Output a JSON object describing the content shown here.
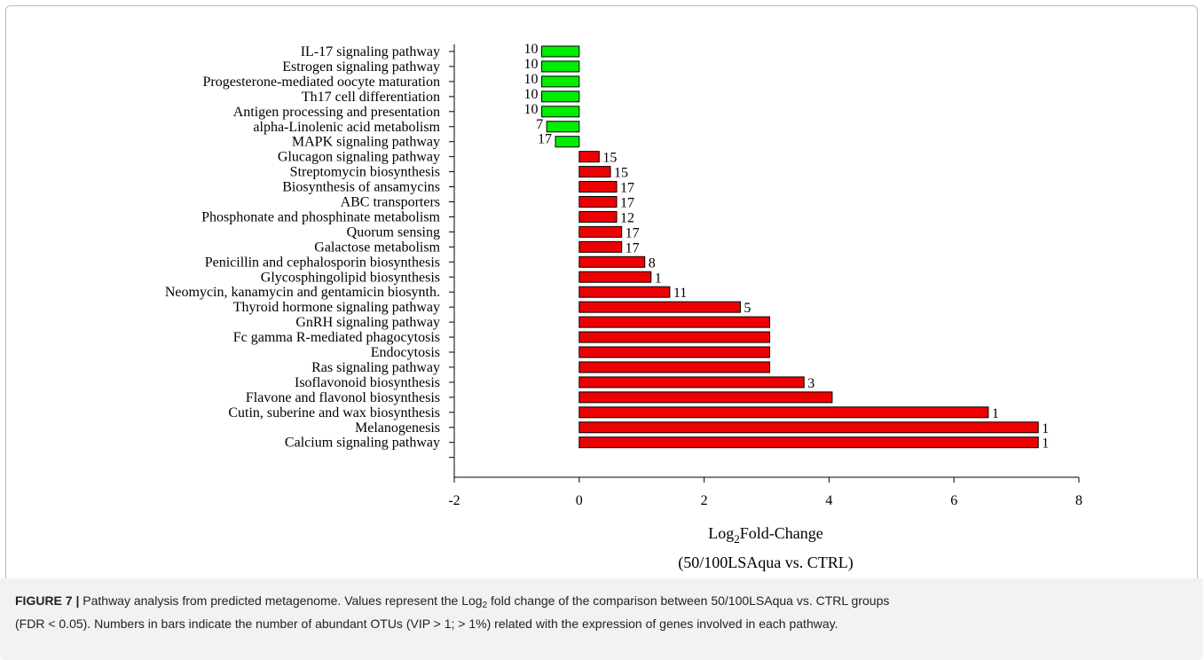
{
  "chart_data": {
    "type": "bar",
    "orientation": "horizontal",
    "categories": [
      "IL-17 signaling pathway",
      "Estrogen signaling pathway",
      "Progesterone-mediated oocyte maturation",
      "Th17 cell differentiation",
      "Antigen processing and presentation",
      "alpha-Linolenic acid metabolism",
      "MAPK signaling pathway",
      "Glucagon signaling pathway",
      "Streptomycin biosynthesis",
      "Biosynthesis of ansamycins",
      "ABC transporters",
      "Phosphonate and phosphinate metabolism",
      "Quorum sensing",
      "Galactose metabolism",
      "Penicillin and cephalosporin biosynthesis",
      "Glycosphingolipid biosynthesis",
      "Neomycin, kanamycin and gentamicin biosynth.",
      "Thyroid hormone signaling pathway",
      "GnRH signaling pathway",
      "Fc gamma R-mediated phagocytosis",
      "Endocytosis",
      "Ras signaling pathway",
      "Isoflavonoid biosynthesis",
      "Flavone and flavonol biosynthesis",
      "Cutin, suberine and wax biosynthesis",
      "Melanogenesis",
      "Calcium signaling pathway"
    ],
    "values": [
      -0.6,
      -0.6,
      -0.6,
      -0.6,
      -0.6,
      -0.52,
      -0.38,
      0.32,
      0.5,
      0.6,
      0.6,
      0.6,
      0.68,
      0.68,
      1.05,
      1.15,
      1.45,
      2.58,
      3.05,
      3.05,
      3.05,
      3.05,
      3.6,
      4.05,
      6.55,
      7.35,
      7.35
    ],
    "bar_labels": [
      "10",
      "10",
      "10",
      "10",
      "10",
      "7",
      "17",
      "15",
      "15",
      "17",
      "17",
      "12",
      "17",
      "17",
      "8",
      "1",
      "11",
      "5",
      "",
      "",
      "",
      "",
      "3",
      "",
      "1",
      "1",
      "1"
    ],
    "colors": {
      "negative": "#00ee00",
      "positive": "#ee0000",
      "outline": "#000000"
    },
    "xlim": [
      -2,
      8
    ],
    "xticks": [
      "-2",
      "0",
      "2",
      "4",
      "6",
      "8"
    ],
    "xlabel_main": "Log",
    "xlabel_sub": "2",
    "xlabel_rest": "Fold-Change",
    "xlabel_line2": "(50/100LSAqua vs. CTRL)",
    "grid": false,
    "legend": "none"
  },
  "caption": {
    "figure_label": "FIGURE 7 |",
    "text_a": " Pathway analysis from predicted metagenome. Values represent the Log",
    "text_sub": "2",
    "text_b": " fold change of the comparison between 50/100LSAqua vs. CTRL groups",
    "text_c": "(FDR < 0.05). Numbers in bars indicate the number of abundant OTUs (VIP > 1; > 1%) related with the expression of genes involved in each pathway."
  }
}
